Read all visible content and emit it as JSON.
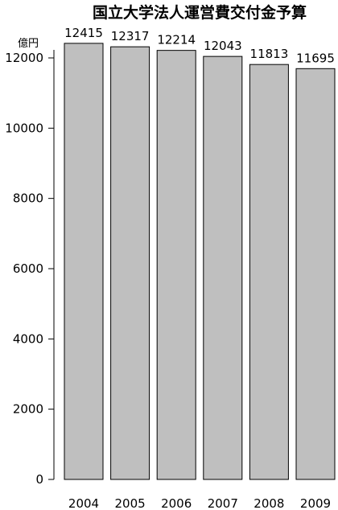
{
  "chart_data": {
    "type": "bar",
    "title": "国立大学法人運営費交付金予算",
    "ylabel": "億円",
    "xlabel": "",
    "categories": [
      "2004",
      "2005",
      "2006",
      "2007",
      "2008",
      "2009"
    ],
    "values": [
      12415,
      12317,
      12214,
      12043,
      11813,
      11695
    ],
    "data_labels": [
      "12415",
      "12317",
      "12214",
      "12043",
      "11813",
      "11695"
    ],
    "ylim": [
      0,
      12000
    ],
    "yticks": [
      0,
      2000,
      4000,
      6000,
      8000,
      10000,
      12000
    ],
    "ytick_labels": [
      "0",
      "2000",
      "4000",
      "6000",
      "8000",
      "10000",
      "12000"
    ],
    "grid": false,
    "bar_color": "#bfbfbf",
    "bar_edge_color": "#000000"
  }
}
